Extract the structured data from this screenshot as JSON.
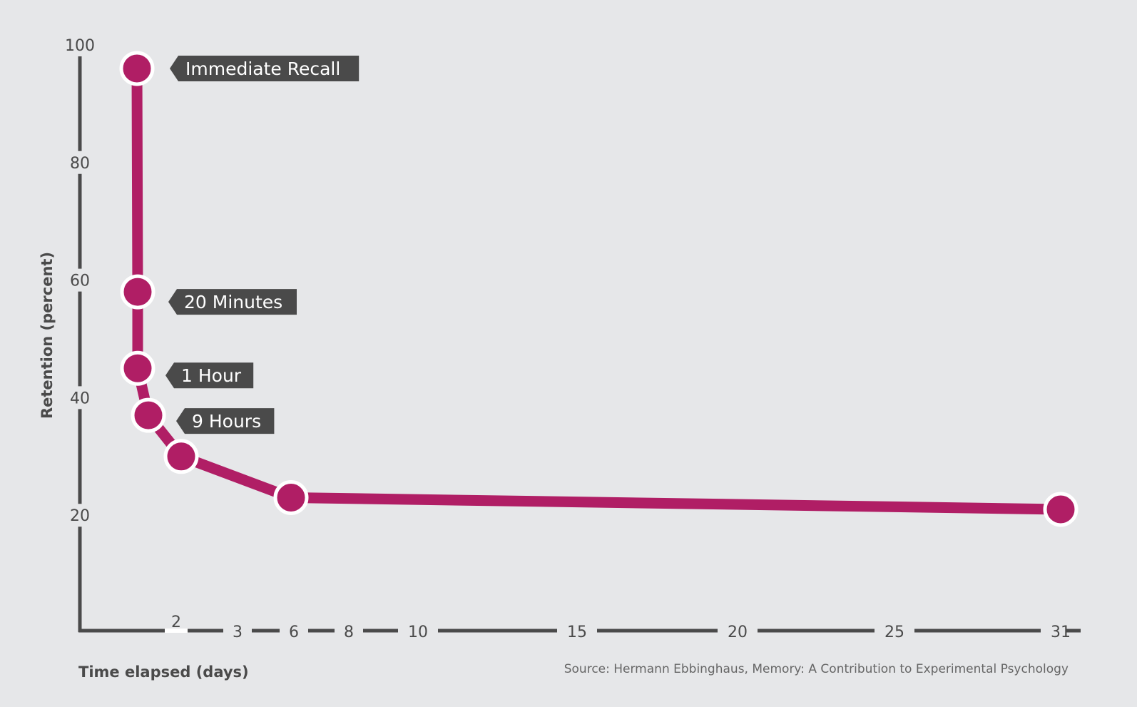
{
  "chart_data": {
    "type": "line",
    "xlabel": "Time elapsed (days)",
    "ylabel": "Retention (percent)",
    "ylim": [
      0,
      100
    ],
    "y_ticks": [
      20,
      40,
      60,
      80,
      100
    ],
    "x_ticks": [
      "2",
      "3",
      "6",
      "8",
      "10",
      "15",
      "20",
      "25",
      "31"
    ],
    "series": [
      {
        "points": [
          {
            "label": "Immediate Recall",
            "x": 0,
            "y": 96
          },
          {
            "label": "20 Minutes",
            "x": 0.014,
            "y": 58
          },
          {
            "label": "1 Hour",
            "x": 0.042,
            "y": 45
          },
          {
            "label": "9 Hours",
            "x": 0.375,
            "y": 37
          },
          {
            "label": "",
            "x": 1,
            "y": 30
          },
          {
            "label": "",
            "x": 6,
            "y": 23
          },
          {
            "label": "",
            "x": 31,
            "y": 21
          }
        ]
      }
    ],
    "colors": {
      "line": "#b01e65",
      "marker_stroke": "#ffffff",
      "axis": "#4a4a4a",
      "callout_bg": "#4a4a4a",
      "background": "#e6e7e9"
    },
    "source": "Source: Hermann Ebbinghaus, Memory: A Contribution to Experimental Psychology"
  }
}
